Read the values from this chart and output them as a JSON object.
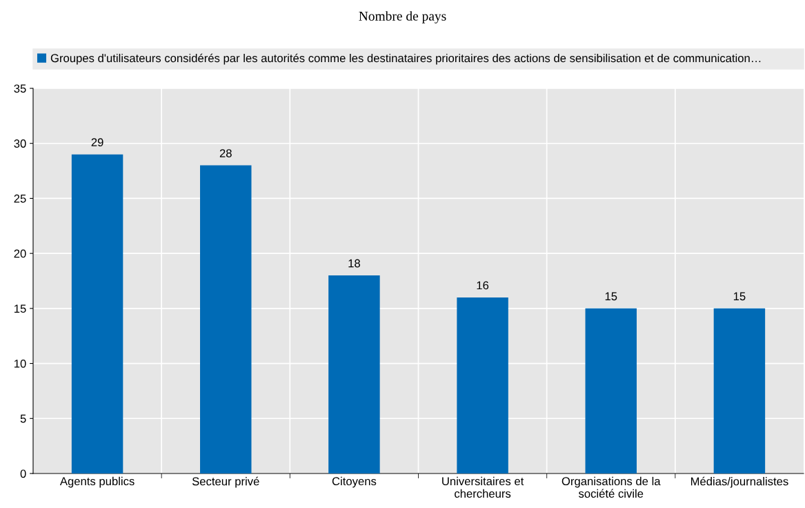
{
  "chart_data": {
    "type": "bar",
    "title": "Nombre de pays",
    "categories": [
      "Agents publics",
      "Secteur privé",
      "Citoyens",
      "Universitaires et\nchercheurs",
      "Organisations de la\nsociété civile",
      "Médias/journalistes"
    ],
    "series": [
      {
        "name": "Groupes d'utilisateurs considérés par les autorités comme les destinataires prioritaires des actions de sensibilisation et de communication…",
        "color": "#006bb6",
        "values": [
          29,
          28,
          18,
          16,
          15,
          15
        ]
      }
    ],
    "ylim": [
      0,
      35
    ],
    "yticks": [
      0,
      5,
      10,
      15,
      20,
      25,
      30,
      35
    ],
    "grid": true,
    "legend": "top",
    "data_labels": true
  }
}
